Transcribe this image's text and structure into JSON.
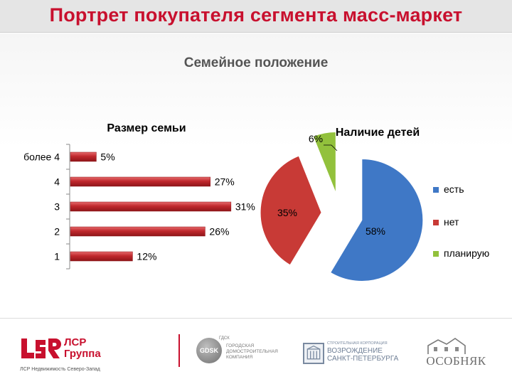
{
  "header": {
    "title": "Портрет покупателя сегмента масс-маркет"
  },
  "section_title": "Семейное положение",
  "chart_data": [
    {
      "type": "bar",
      "orientation": "horizontal",
      "title": "Размер семьи",
      "categories": [
        "более 4",
        "4",
        "3",
        "2",
        "1"
      ],
      "values": [
        5,
        27,
        31,
        26,
        12
      ],
      "value_labels": [
        "5%",
        "27%",
        "31%",
        "26%",
        "12%"
      ],
      "unit": "%",
      "xlim": [
        0,
        35
      ],
      "grid": false,
      "color": "#c0282d"
    },
    {
      "type": "pie",
      "title": "Наличие детей",
      "labels": [
        "есть",
        "нет",
        "планирую"
      ],
      "values": [
        58,
        35,
        6
      ],
      "value_labels": [
        "58%",
        "35%",
        "6%"
      ],
      "colors": [
        "#3f78c6",
        "#c83a36",
        "#92c13c"
      ],
      "exploded": true,
      "legend_position": "right"
    }
  ],
  "footer": {
    "lsr_name": "ЛСР Группа",
    "lsr_sub": "ЛСР Недвижимость Северо-Запад",
    "gdsk_mark": "GDSK",
    "gdsk_sup": "ГДСК",
    "gdsk_text": "Городская домостроительная компания",
    "voz_small": "Строительная корпорация",
    "voz_big": "Возрождение Санкт-Петербурга",
    "osob_name": "ОСОБНЯК"
  }
}
